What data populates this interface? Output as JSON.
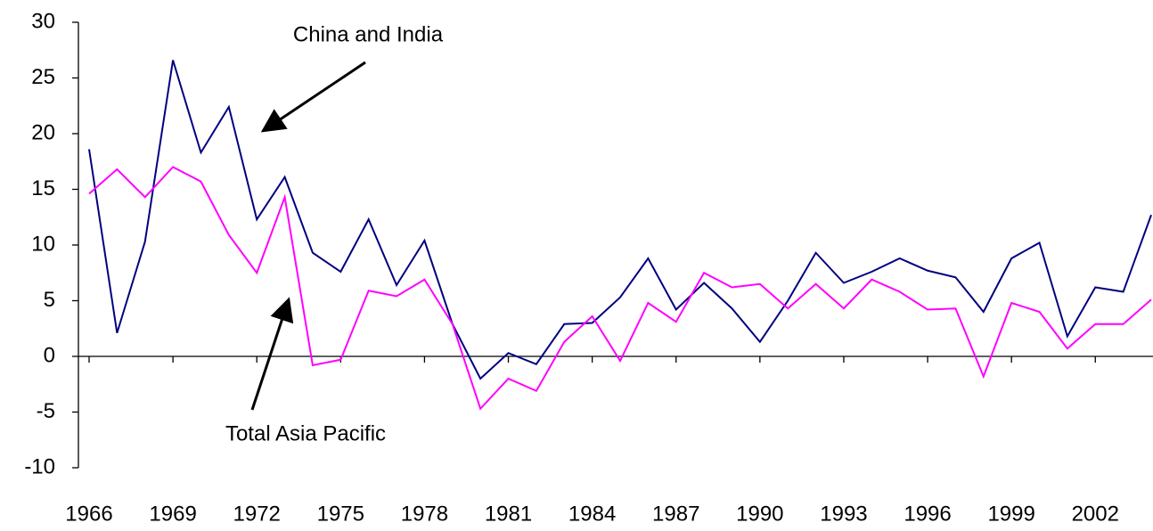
{
  "chart_data": {
    "type": "line",
    "x": [
      1966,
      1967,
      1968,
      1969,
      1970,
      1971,
      1972,
      1973,
      1974,
      1975,
      1976,
      1977,
      1978,
      1979,
      1980,
      1981,
      1982,
      1983,
      1984,
      1985,
      1986,
      1987,
      1988,
      1989,
      1990,
      1991,
      1992,
      1993,
      1994,
      1995,
      1996,
      1997,
      1998,
      1999,
      2000,
      2001,
      2002,
      2003,
      2004
    ],
    "series": [
      {
        "name": "China and India",
        "color": "#000080",
        "values": [
          18.6,
          2.1,
          10.3,
          26.6,
          18.3,
          22.4,
          12.3,
          16.1,
          9.3,
          7.6,
          12.3,
          6.4,
          10.4,
          2.9,
          -2.0,
          0.3,
          -0.7,
          2.9,
          3.0,
          5.3,
          8.8,
          4.2,
          6.6,
          4.3,
          1.3,
          5.0,
          9.3,
          6.6,
          7.6,
          8.8,
          7.7,
          7.1,
          4.0,
          8.8,
          10.2,
          1.8,
          6.2,
          5.8,
          12.7
        ]
      },
      {
        "name": "Total Asia Pacific",
        "color": "#ff00ff",
        "values": [
          14.6,
          16.8,
          14.3,
          17.0,
          15.7,
          10.9,
          7.5,
          14.3,
          -0.8,
          -0.3,
          5.9,
          5.4,
          6.9,
          2.9,
          -4.7,
          -2.0,
          -3.1,
          1.3,
          3.6,
          -0.4,
          4.8,
          3.1,
          7.5,
          6.2,
          6.5,
          4.3,
          6.5,
          4.3,
          6.9,
          5.8,
          4.2,
          4.3,
          -1.8,
          4.8,
          4.0,
          0.7,
          2.9,
          2.9,
          5.1
        ]
      }
    ],
    "xlim": [
      1966,
      2004
    ],
    "xticks": [
      1966,
      1969,
      1972,
      1975,
      1978,
      1981,
      1984,
      1987,
      1990,
      1993,
      1996,
      1999,
      2002
    ],
    "ylim": [
      -10,
      30
    ],
    "yticks": [
      -10,
      -5,
      0,
      5,
      10,
      15,
      20,
      25,
      30
    ],
    "grid": false
  }
}
